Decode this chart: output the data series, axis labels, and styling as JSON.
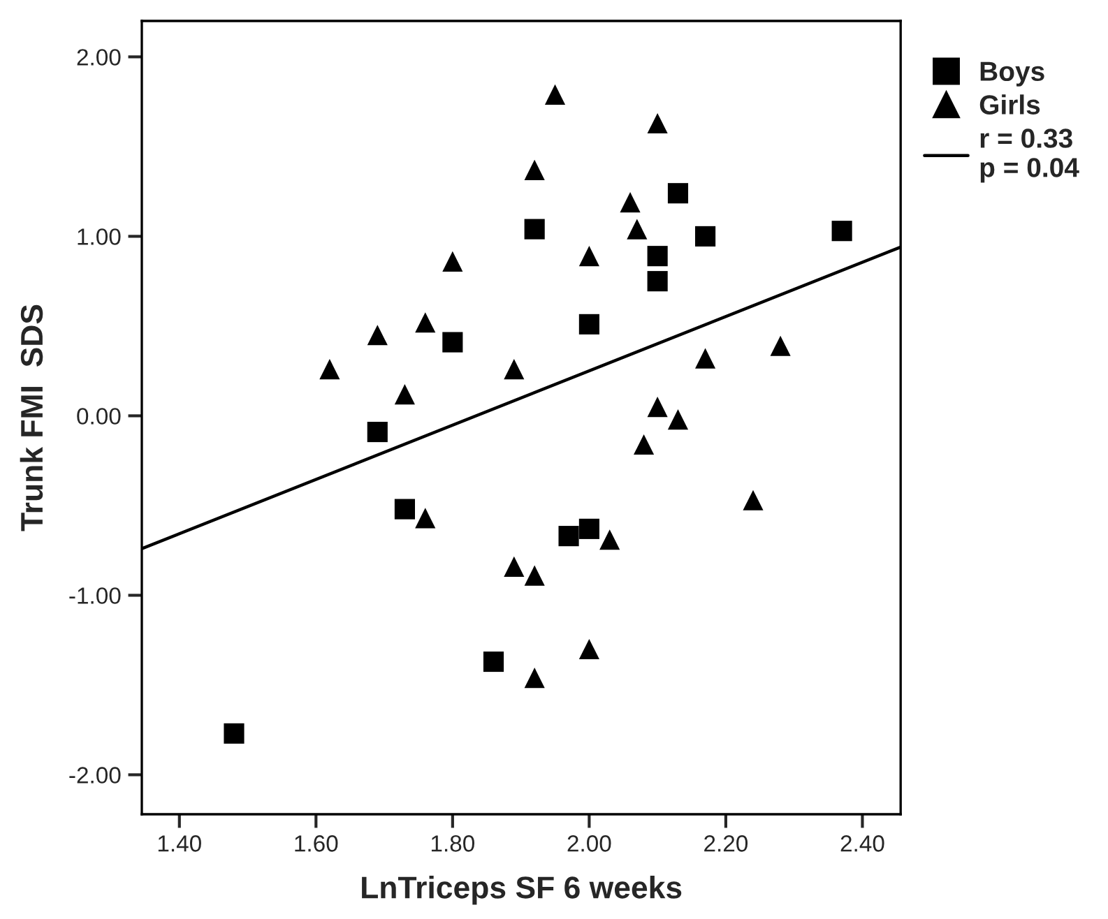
{
  "chart_data": {
    "type": "scatter",
    "xlabel": "LnTriceps SF 6 weeks",
    "ylabel": "Trunk FMI  SDS",
    "xlim": [
      1.345,
      2.456
    ],
    "ylim": [
      -2.22,
      2.2
    ],
    "xticks": [
      {
        "value": 1.4,
        "label": "1.40"
      },
      {
        "value": 1.6,
        "label": "1.60"
      },
      {
        "value": 1.8,
        "label": "1.80"
      },
      {
        "value": 2.0,
        "label": "2.00"
      },
      {
        "value": 2.2,
        "label": "2.20"
      },
      {
        "value": 2.4,
        "label": "2.40"
      }
    ],
    "yticks": [
      {
        "value": -2,
        "label": "-2.00"
      },
      {
        "value": -1,
        "label": "-1.00"
      },
      {
        "value": 0,
        "label": "0.00"
      },
      {
        "value": 1,
        "label": "1.00"
      },
      {
        "value": 2,
        "label": "2.00"
      }
    ],
    "grid": false,
    "legend": "right",
    "series": [
      {
        "name": "Boys",
        "marker": "square",
        "color": "#000000",
        "x": [
          1.48,
          1.69,
          1.73,
          1.8,
          1.92,
          1.86,
          1.97,
          2.0,
          2.0,
          2.1,
          2.1,
          2.13,
          2.17,
          2.37
        ],
        "values": [
          -1.77,
          -0.09,
          -0.52,
          0.41,
          1.04,
          -1.37,
          -0.67,
          -0.63,
          0.51,
          0.75,
          0.89,
          1.24,
          1.0,
          1.03
        ]
      },
      {
        "name": "Girls",
        "marker": "triangle",
        "color": "#000000",
        "x": [
          1.95,
          1.92,
          1.8,
          1.76,
          1.69,
          1.62,
          1.89,
          1.73,
          1.76,
          1.89,
          1.92,
          1.92,
          2.0,
          2.03,
          2.1,
          2.06,
          2.07,
          2.0,
          2.28,
          2.17,
          2.1,
          2.13,
          2.08,
          2.24
        ],
        "values": [
          1.79,
          1.37,
          0.86,
          0.52,
          0.45,
          0.26,
          0.26,
          0.12,
          -0.57,
          -0.84,
          -0.89,
          -1.46,
          -1.3,
          -0.69,
          1.63,
          1.19,
          1.04,
          0.89,
          0.39,
          0.32,
          0.05,
          -0.02,
          -0.16,
          -0.47
        ]
      },
      {
        "name": "r = 0.33\np = 0.04",
        "type": "line",
        "line_style": "solid",
        "color": "#000000",
        "x": [
          1.345,
          2.456
        ],
        "values": [
          -0.74,
          0.94
        ]
      }
    ]
  }
}
